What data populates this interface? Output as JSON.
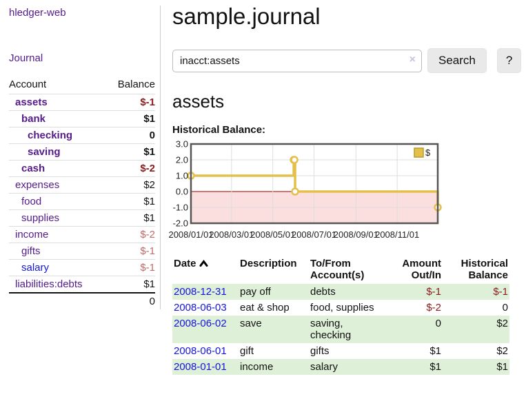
{
  "colors": {
    "link_purple": "#551a8b",
    "link_blue": "#1414dd",
    "negative_strong": "#8b1b1b",
    "negative_muted": "#c46a6a",
    "row_highlight": "#dff0d8",
    "chart_line": "#e4c04b",
    "chart_negative_fill": "#fbdede",
    "chart_zero_line": "#990000",
    "button_bg": "#e9e9e9"
  },
  "sidebar": {
    "app_title": "hledger-web",
    "nav": [
      {
        "label": "Journal"
      }
    ],
    "accounts_table": {
      "headers": [
        "Account",
        "Balance"
      ],
      "rows": [
        {
          "name": "assets",
          "depth": 1,
          "bold": true,
          "balance": "$-1",
          "balance_style": "neg-strong",
          "link_color": "purple"
        },
        {
          "name": "bank",
          "depth": 2,
          "bold": true,
          "balance": "$1",
          "balance_style": "pos",
          "link_color": "purple"
        },
        {
          "name": "checking",
          "depth": 3,
          "bold": true,
          "balance": "0",
          "balance_style": "pos",
          "link_color": "purple"
        },
        {
          "name": "saving",
          "depth": 3,
          "bold": true,
          "balance": "$1",
          "balance_style": "pos",
          "link_color": "purple"
        },
        {
          "name": "cash",
          "depth": 2,
          "bold": true,
          "balance": "$-2",
          "balance_style": "neg-strong",
          "link_color": "purple"
        },
        {
          "name": "expenses",
          "depth": 1,
          "bold": false,
          "balance": "$2",
          "balance_style": "pos",
          "link_color": "purple"
        },
        {
          "name": "food",
          "depth": 2,
          "bold": false,
          "balance": "$1",
          "balance_style": "pos",
          "link_color": "purple"
        },
        {
          "name": "supplies",
          "depth": 2,
          "bold": false,
          "balance": "$1",
          "balance_style": "pos",
          "link_color": "purple"
        },
        {
          "name": "income",
          "depth": 1,
          "bold": false,
          "balance": "$-2",
          "balance_style": "neg-muted",
          "link_color": "purple"
        },
        {
          "name": "gifts",
          "depth": 2,
          "bold": false,
          "balance": "$-1",
          "balance_style": "neg-muted",
          "link_color": "purple"
        },
        {
          "name": "salary",
          "depth": 2,
          "bold": false,
          "balance": "$-1",
          "balance_style": "neg-muted",
          "link_color": "blue"
        },
        {
          "name": "liabilities:debts",
          "depth": 1,
          "bold": false,
          "balance": "$1",
          "balance_style": "pos",
          "link_color": "purple"
        }
      ],
      "total": "0"
    }
  },
  "main": {
    "title": "sample.journal",
    "search": {
      "value": "inacct:assets",
      "clear_icon": "×",
      "button": "Search",
      "help_button": "?"
    },
    "account_heading": "assets",
    "chart_label": "Historical Balance:",
    "register_table": {
      "headers": [
        "Date",
        "Description",
        "To/From Account(s)",
        "Amount Out/In",
        "Historical Balance"
      ],
      "rows": [
        {
          "date": "2008-12-31",
          "description": "pay off",
          "accounts": "debts",
          "amount": "$-1",
          "amount_neg": true,
          "balance": "$-1",
          "balance_neg": true,
          "highlight": true
        },
        {
          "date": "2008-06-03",
          "description": "eat & shop",
          "accounts": "food, supplies",
          "amount": "$-2",
          "amount_neg": true,
          "balance": "0",
          "balance_neg": false,
          "highlight": false
        },
        {
          "date": "2008-06-02",
          "description": "save",
          "accounts": "saving, checking",
          "amount": "0",
          "amount_neg": false,
          "balance": "$2",
          "balance_neg": false,
          "highlight": true
        },
        {
          "date": "2008-06-01",
          "description": "gift",
          "accounts": "gifts",
          "amount": "$1",
          "amount_neg": false,
          "balance": "$2",
          "balance_neg": false,
          "highlight": false
        },
        {
          "date": "2008-01-01",
          "description": "income",
          "accounts": "salary",
          "amount": "$1",
          "amount_neg": false,
          "balance": "$1",
          "balance_neg": false,
          "highlight": true
        }
      ]
    }
  },
  "chart_data": {
    "type": "line",
    "title": "Historical Balance",
    "step": "after",
    "series": [
      {
        "name": "$",
        "points": [
          [
            "2008-01-01",
            1
          ],
          [
            "2008-06-01",
            2
          ],
          [
            "2008-06-02",
            2
          ],
          [
            "2008-06-03",
            0
          ],
          [
            "2008-12-31",
            -1
          ]
        ]
      }
    ],
    "x_range": [
      "2008-01-01",
      "2008-12-31"
    ],
    "ylim": [
      -2,
      3
    ],
    "y_ticks": [
      3.0,
      2.0,
      1.0,
      0.0,
      -1.0,
      -2.0
    ],
    "x_tick_labels": [
      "2008/01/01",
      "2008/03/01",
      "2008/05/01",
      "2008/07/01",
      "2008/09/01",
      "2008/11/01"
    ],
    "grid": true,
    "legend_position": "top-right",
    "negative_region_shaded": true
  }
}
